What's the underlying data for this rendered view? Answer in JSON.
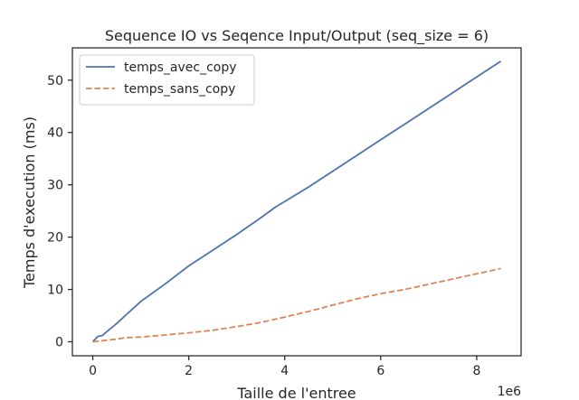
{
  "chart_data": {
    "type": "line",
    "title": "Sequence IO vs Seqence Input/Output (seq_size = 6)",
    "xlabel": "Taille de l'entree",
    "ylabel": "Temps d'execution (ms)",
    "x_offset_label": "1e6",
    "xlim": [
      -0.425,
      8.925
    ],
    "ylim": [
      -2.675,
      56.175
    ],
    "x_ticks": [
      0,
      2,
      4,
      6,
      8
    ],
    "x_tick_labels": [
      "0",
      "2",
      "4",
      "6",
      "8"
    ],
    "y_ticks": [
      0,
      10,
      20,
      30,
      40,
      50
    ],
    "y_tick_labels": [
      "0",
      "10",
      "20",
      "30",
      "40",
      "50"
    ],
    "grid": false,
    "legend_position": "upper left",
    "series": [
      {
        "name": "temps_avec_copy",
        "color": "#4c72b0",
        "dash": "solid",
        "x": [
          0,
          0.1,
          0.2,
          0.3,
          0.5,
          0.7,
          1.0,
          1.5,
          2.0,
          2.5,
          3.0,
          3.5,
          3.8,
          4.5,
          5.0,
          5.5,
          6.0,
          6.5,
          7.0,
          7.5,
          8.0,
          8.5
        ],
        "y": [
          0,
          1,
          1.2,
          2,
          3.5,
          5.2,
          7.7,
          11,
          14.5,
          17.5,
          20.5,
          23.7,
          25.7,
          29.6,
          32.6,
          35.6,
          38.6,
          41.6,
          44.6,
          47.6,
          50.6,
          53.6
        ]
      },
      {
        "name": "temps_sans_copy",
        "color": "#dd8452",
        "dash": "dashed",
        "x": [
          0,
          0.5,
          0.7,
          1.0,
          1.5,
          2.0,
          2.5,
          3.0,
          3.5,
          3.8,
          4.5,
          5.0,
          5.5,
          6.0,
          6.5,
          7.0,
          7.5,
          8.0,
          8.5
        ],
        "y": [
          0,
          0.5,
          0.8,
          0.9,
          1.3,
          1.7,
          2.2,
          2.9,
          3.7,
          4.3,
          5.8,
          7.0,
          8.2,
          9.2,
          10.0,
          11.0,
          12.0,
          13.0,
          14.0
        ]
      }
    ]
  }
}
